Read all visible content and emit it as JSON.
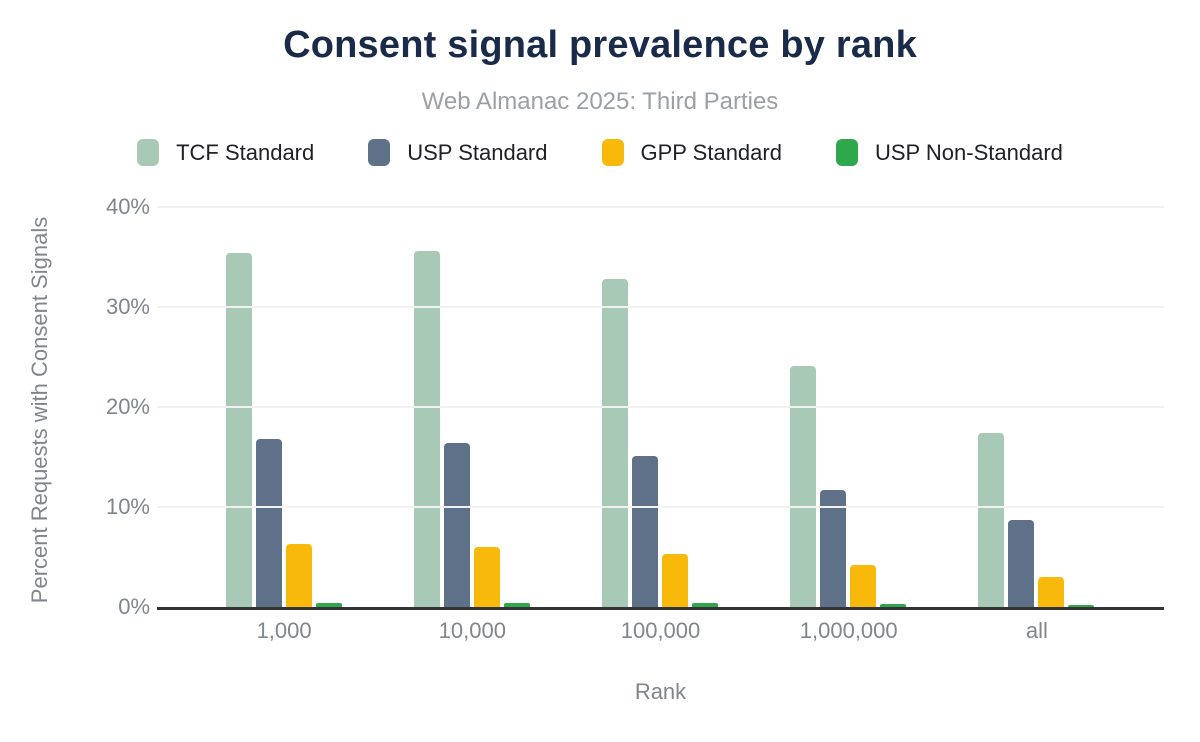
{
  "title": "Consent signal prevalence by rank",
  "subtitle": "Web Almanac 2025: Third Parties",
  "chart_data": {
    "type": "bar",
    "title": "Consent signal prevalence by rank",
    "subtitle": "Web Almanac 2025: Third Parties",
    "xlabel": "Rank",
    "ylabel": "Percent Requests with Consent Signals",
    "categories": [
      "1,000",
      "10,000",
      "100,000",
      "1,000,000",
      "all"
    ],
    "series": [
      {
        "name": "TCF Standard",
        "color": "#a9c9b7",
        "values": [
          35.4,
          35.6,
          32.8,
          24.1,
          17.4
        ]
      },
      {
        "name": "USP Standard",
        "color": "#5f7089",
        "values": [
          16.8,
          16.4,
          15.1,
          11.7,
          8.7
        ]
      },
      {
        "name": "GPP Standard",
        "color": "#f9b90b",
        "values": [
          6.3,
          6.0,
          5.3,
          4.2,
          3.0
        ]
      },
      {
        "name": "USP Non-Standard",
        "color": "#2fa84d",
        "values": [
          0.4,
          0.4,
          0.4,
          0.3,
          0.25
        ]
      }
    ],
    "ylim": [
      0,
      40
    ],
    "yticks": [
      {
        "label": "0%",
        "value": 0
      },
      {
        "label": "10%",
        "value": 10
      },
      {
        "label": "20%",
        "value": 20
      },
      {
        "label": "30%",
        "value": 30
      },
      {
        "label": "40%",
        "value": 40
      }
    ],
    "grid": true,
    "legend_position": "top"
  },
  "colors": {
    "background": "#ffffff",
    "title": "#1a2b49",
    "subtitle": "#9aa0a6",
    "axis_text": "#7f868c",
    "legend_text": "#202124",
    "gridline": "#f1f1f1",
    "axis_line": "#333333"
  }
}
